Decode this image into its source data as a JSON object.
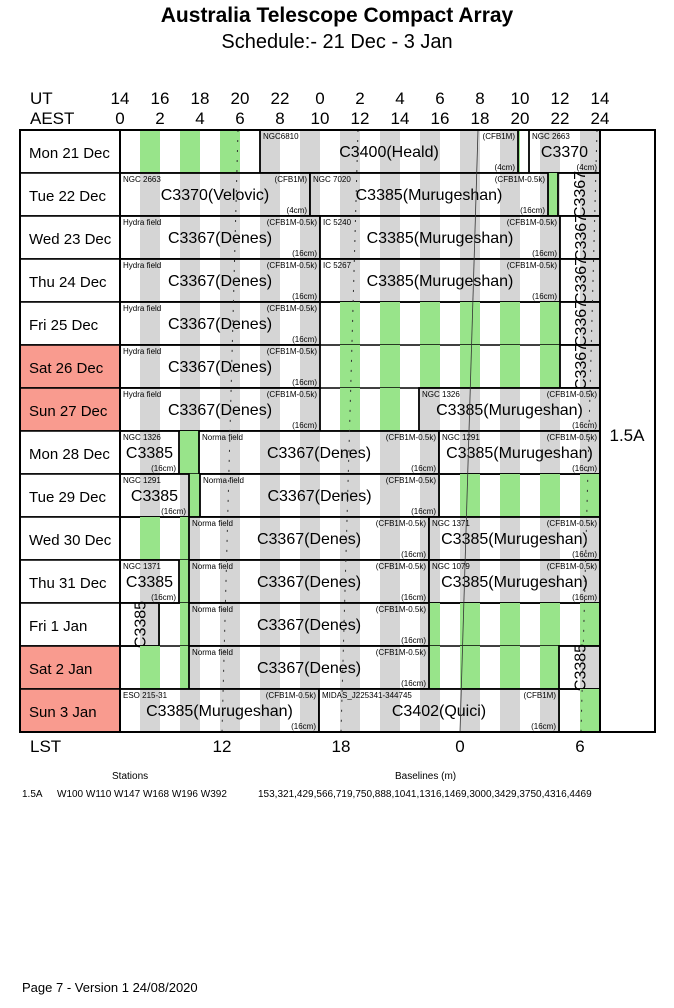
{
  "header": {
    "title": "Australia Telescope Compact Array",
    "subtitle": "Schedule:- 21 Dec - 3  Jan"
  },
  "axes": {
    "ut_label": "UT",
    "aest_label": "AEST",
    "lst_label": "LST",
    "ut_ticks": [
      "14",
      "16",
      "18",
      "20",
      "22",
      "0",
      "2",
      "4",
      "6",
      "8",
      "10",
      "12",
      "14"
    ],
    "aest_ticks": [
      "0",
      "2",
      "4",
      "6",
      "8",
      "10",
      "12",
      "14",
      "16",
      "18",
      "20",
      "22",
      "24"
    ],
    "lst_ticks": [
      {
        "label": "12",
        "aest": 5.1
      },
      {
        "label": "18",
        "aest": 11.05
      },
      {
        "label": "0",
        "aest": 17.0
      },
      {
        "label": "6",
        "aest": 23.0
      }
    ],
    "lst_lines": [
      {
        "name": "lst-12",
        "top": 5.9,
        "bottom": 5.1,
        "dashed": true
      },
      {
        "name": "lst-18",
        "top": 11.9,
        "bottom": 11.05,
        "dashed": true
      },
      {
        "name": "lst-0",
        "top": 17.9,
        "bottom": 17.0,
        "dashed": false
      },
      {
        "name": "lst-6",
        "top": 23.85,
        "bottom": 23.05,
        "dashed": true
      }
    ]
  },
  "colors": {
    "busy_stripe": "#d5d5d5",
    "free_stripe": "#98e48a",
    "weekend": "#f99b8f",
    "border": "#000000"
  },
  "array_config": "1.5A",
  "days": [
    {
      "label": "Mon  21 Dec",
      "weekend": false,
      "blocks": [
        {
          "start": 7.0,
          "end": 19.9,
          "label": "C3400(Heald)",
          "source": "NGC6810",
          "config": "(CFB1M)",
          "band": "(4cm)"
        },
        {
          "start": 20.45,
          "end": 24,
          "label": "C3370",
          "source": "NGC 2663",
          "config": "",
          "band": "(4cm)"
        }
      ]
    },
    {
      "label": "Tue   22 Dec",
      "weekend": false,
      "blocks": [
        {
          "start": 0,
          "end": 9.5,
          "label": "C3370(Velovic)",
          "source": "NGC 2663",
          "config": "(CFB1M)",
          "band": "(4cm)"
        },
        {
          "start": 9.5,
          "end": 21.4,
          "label": "C3385(Murugeshan)",
          "source": "NGC 7020",
          "config": "(CFB1M-0.5k)",
          "band": "(16cm)"
        },
        {
          "start": 21.9,
          "end": 24,
          "label": "C3367",
          "vertical": true
        }
      ]
    },
    {
      "label": "Wed  23 Dec",
      "weekend": false,
      "blocks": [
        {
          "start": 0,
          "end": 10,
          "label": "C3367(Denes)",
          "source": "Hydra field",
          "config": "(CFB1M-0.5k)",
          "band": "(16cm)"
        },
        {
          "start": 10,
          "end": 22,
          "label": "C3385(Murugeshan)",
          "source": "IC 5240",
          "config": "(CFB1M-0.5k)",
          "band": "(16cm)"
        },
        {
          "start": 22,
          "end": 24,
          "label": "C3367",
          "vertical": true
        }
      ]
    },
    {
      "label": "Thu   24 Dec",
      "weekend": false,
      "blocks": [
        {
          "start": 0,
          "end": 10,
          "label": "C3367(Denes)",
          "source": "Hydra field",
          "config": "(CFB1M-0.5k)",
          "band": "(16cm)"
        },
        {
          "start": 10,
          "end": 22,
          "label": "C3385(Murugeshan)",
          "source": "IC 5267",
          "config": "(CFB1M-0.5k)",
          "band": "(16cm)"
        },
        {
          "start": 22,
          "end": 24,
          "label": "C3367",
          "vertical": true
        }
      ]
    },
    {
      "label": "Fri    25 Dec",
      "weekend": false,
      "blocks": [
        {
          "start": 0,
          "end": 10,
          "label": "C3367(Denes)",
          "source": "Hydra field",
          "config": "(CFB1M-0.5k)",
          "band": "(16cm)"
        },
        {
          "start": 22,
          "end": 24,
          "label": "C3367",
          "vertical": true
        }
      ]
    },
    {
      "label": "Sat   26 Dec",
      "weekend": true,
      "blocks": [
        {
          "start": 0,
          "end": 10,
          "label": "C3367(Denes)",
          "source": "Hydra field",
          "config": "(CFB1M-0.5k)",
          "band": "(16cm)"
        },
        {
          "start": 22,
          "end": 24,
          "label": "C3367",
          "vertical": true
        }
      ]
    },
    {
      "label": "Sun   27 Dec",
      "weekend": true,
      "blocks": [
        {
          "start": 0,
          "end": 10,
          "label": "C3367(Denes)",
          "source": "Hydra field",
          "config": "(CFB1M-0.5k)",
          "band": "(16cm)"
        },
        {
          "start": 14.95,
          "end": 24,
          "label": "C3385(Murugeshan)",
          "source": "NGC 1326",
          "config": "(CFB1M-0.5k)",
          "band": "(16cm)"
        }
      ]
    },
    {
      "label": "Mon  28 Dec",
      "weekend": false,
      "blocks": [
        {
          "start": 0,
          "end": 2.95,
          "label": "C3385",
          "source": "NGC 1326",
          "config": "",
          "band": "(16cm)"
        },
        {
          "start": 3.95,
          "end": 15.95,
          "label": "C3367(Denes)",
          "source": "Norma field",
          "config": "(CFB1M-0.5k)",
          "band": "(16cm)"
        },
        {
          "start": 15.95,
          "end": 24,
          "label": "C3385(Murugeshan)",
          "source": "NGC 1291",
          "config": "(CFB1M-0.5k)",
          "band": "(16cm)"
        }
      ]
    },
    {
      "label": "Tue   29 Dec",
      "weekend": false,
      "blocks": [
        {
          "start": 0,
          "end": 3.45,
          "label": "C3385",
          "source": "NGC 1291",
          "config": "",
          "band": "(16cm)"
        },
        {
          "start": 4.0,
          "end": 15.95,
          "label": "C3367(Denes)",
          "source": "Norma field",
          "config": "(CFB1M-0.5k)",
          "band": "(16cm)"
        }
      ]
    },
    {
      "label": "Wed  30 Dec",
      "weekend": false,
      "blocks": [
        {
          "start": 3.45,
          "end": 15.45,
          "label": "C3367(Denes)",
          "source": "Norma field",
          "config": "(CFB1M-0.5k)",
          "band": "(16cm)"
        },
        {
          "start": 15.45,
          "end": 24,
          "label": "C3385(Murugeshan)",
          "source": "NGC 1371",
          "config": "(CFB1M-0.5k)",
          "band": "(16cm)"
        }
      ]
    },
    {
      "label": "Thu   31 Dec",
      "weekend": false,
      "blocks": [
        {
          "start": 0,
          "end": 2.95,
          "label": "C3385",
          "source": "NGC 1371",
          "config": "",
          "band": "(16cm)"
        },
        {
          "start": 3.45,
          "end": 15.45,
          "label": "C3367(Denes)",
          "source": "Norma field",
          "config": "(CFB1M-0.5k)",
          "band": "(16cm)"
        },
        {
          "start": 15.45,
          "end": 24,
          "label": "C3385(Murugeshan)",
          "source": "NGC 1079",
          "config": "(CFB1M-0.5k)",
          "band": "(16cm)"
        }
      ]
    },
    {
      "label": "Fri      1  Jan",
      "weekend": false,
      "blocks": [
        {
          "start": 0,
          "end": 1.95,
          "label": "C3385",
          "vertical": true
        },
        {
          "start": 3.45,
          "end": 15.45,
          "label": "C3367(Denes)",
          "source": "Norma field",
          "config": "(CFB1M-0.5k)",
          "band": "(16cm)"
        }
      ]
    },
    {
      "label": "Sat     2  Jan",
      "weekend": true,
      "blocks": [
        {
          "start": 3.45,
          "end": 15.45,
          "label": "C3367(Denes)",
          "source": "Norma field",
          "config": "(CFB1M-0.5k)",
          "band": "(16cm)"
        },
        {
          "start": 21.95,
          "end": 24,
          "label": "C3385",
          "vertical": true
        }
      ]
    },
    {
      "label": "Sun    3  Jan",
      "weekend": true,
      "blocks": [
        {
          "start": 0,
          "end": 9.95,
          "label": "C3385(Murugeshan)",
          "source": "ESO 215-31",
          "config": "(CFB1M-0.5k)",
          "band": "(16cm)"
        },
        {
          "start": 9.95,
          "end": 21.95,
          "label": "C3402(Quici)",
          "source": "MIDAS_J225341-344745",
          "config": "(CFB1M)",
          "band": "(16cm)"
        }
      ]
    }
  ],
  "footer_info": {
    "stations_header": "Stations",
    "baselines_header": "Baselines (m)",
    "config": "1.5A",
    "stations": "W100 W110 W147 W168 W196 W392",
    "baselines": "153,321,429,566,719,750,888,1041,1316,1469,3000,3429,3750,4316,4469"
  },
  "footer": "Page 7 - Version 1  24/08/2020"
}
